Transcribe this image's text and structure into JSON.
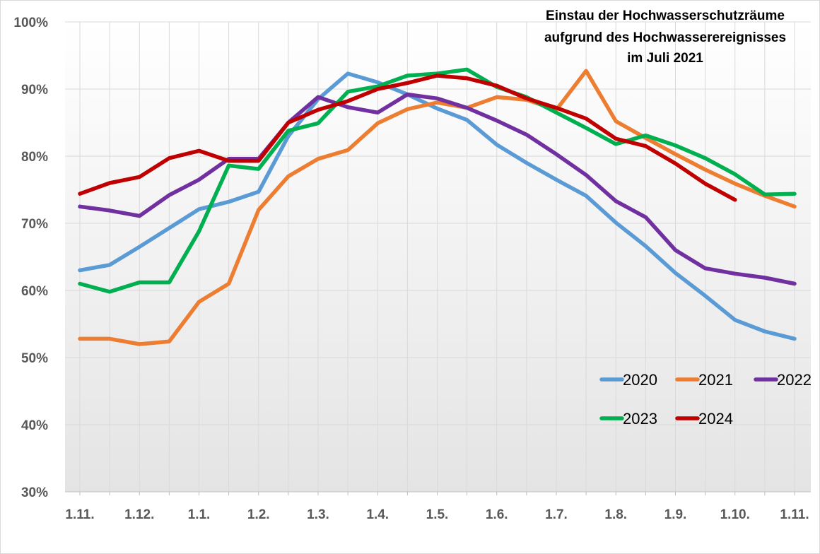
{
  "chart_data": {
    "type": "line",
    "title": [
      "Einstau der Hochwasserschutzräume",
      "aufgrund des Hochwasserereignisses",
      "im Juli 2021"
    ],
    "xlabel": "",
    "ylabel": "",
    "ylim": [
      30,
      100
    ],
    "yticks": [
      "30%",
      "40%",
      "50%",
      "60%",
      "70%",
      "80%",
      "90%",
      "100%"
    ],
    "ytick_values": [
      30,
      40,
      50,
      60,
      70,
      80,
      90,
      100
    ],
    "x_tick_labels": [
      "1.11.",
      "1.12.",
      "1.1.",
      "1.2.",
      "1.3.",
      "1.4.",
      "1.5.",
      "1.6.",
      "1.7.",
      "1.8.",
      "1.9.",
      "1.10.",
      "1.11."
    ],
    "grid": true,
    "legend_position": "bottom-right",
    "series": [
      {
        "name": "2020",
        "color": "#5B9BD5",
        "values": [
          63.0,
          63.8,
          66.5,
          69.3,
          72.1,
          73.2,
          74.7,
          83.0,
          88.5,
          92.3,
          91.0,
          89.2,
          87.1,
          85.4,
          81.7,
          79.0,
          76.5,
          74.1,
          70.1,
          66.6,
          62.6,
          59.2,
          55.6,
          53.9,
          52.8
        ]
      },
      {
        "name": "2021",
        "color": "#ED7D31",
        "values": [
          52.8,
          52.8,
          52.0,
          52.4,
          58.3,
          61.0,
          72.0,
          77.0,
          79.6,
          80.9,
          84.9,
          87.0,
          88.0,
          87.2,
          88.8,
          88.4,
          86.9,
          92.7,
          85.2,
          82.7,
          80.3,
          78.0,
          75.9,
          74.1,
          72.5
        ]
      },
      {
        "name": "2022",
        "color": "#7030A0",
        "values": [
          72.5,
          71.9,
          71.1,
          74.2,
          76.5,
          79.6,
          79.6,
          85.0,
          88.8,
          87.3,
          86.5,
          89.2,
          88.6,
          87.2,
          85.3,
          83.2,
          80.3,
          77.2,
          73.3,
          70.9,
          66.0,
          63.3,
          62.5,
          61.9,
          61.0
        ]
      },
      {
        "name": "2023",
        "color": "#00B050",
        "values": [
          61.0,
          59.8,
          61.2,
          61.2,
          68.8,
          78.6,
          78.1,
          83.8,
          84.9,
          89.6,
          90.4,
          92.0,
          92.3,
          92.9,
          90.3,
          88.8,
          86.5,
          84.2,
          81.8,
          83.1,
          81.6,
          79.7,
          77.3,
          74.3,
          74.4
        ]
      },
      {
        "name": "2024",
        "color": "#C00000",
        "values": [
          74.4,
          76.0,
          76.9,
          79.7,
          80.8,
          79.3,
          79.3,
          85.0,
          86.9,
          88.2,
          90.0,
          90.9,
          92.0,
          91.6,
          90.5,
          88.6,
          87.2,
          85.6,
          82.6,
          81.5,
          78.9,
          75.9,
          73.5
        ]
      }
    ]
  }
}
